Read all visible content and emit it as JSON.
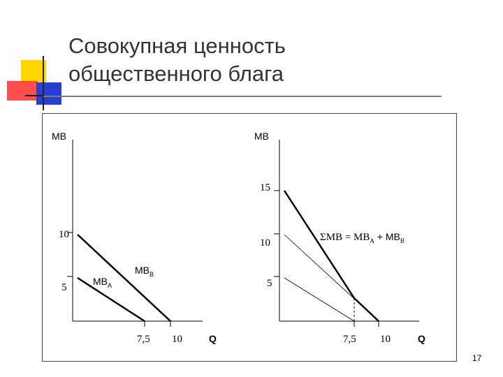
{
  "slide": {
    "title_line1": "Совокупная ценность",
    "title_line2": "общественного блага",
    "page_number": "17"
  },
  "decoration": {
    "colors": {
      "yellow": "#ffd700",
      "red": "#ff3b3b",
      "blue": "#2a3fd0",
      "rule": "#7a7a7a"
    }
  },
  "left_graph": {
    "y_axis_label": "MB",
    "x_axis_label": "Q",
    "y_ticks": [
      "10",
      "5"
    ],
    "x_ticks": [
      "7,5",
      "10"
    ],
    "curve_a": {
      "label": "MB",
      "subscript": "A",
      "intercept": 5,
      "q_zero": 7.5
    },
    "curve_b": {
      "label": "MB",
      "subscript": "B",
      "intercept": 10,
      "q_zero": 10
    }
  },
  "right_graph": {
    "y_axis_label": "MB",
    "x_axis_label": "Q",
    "y_ticks": [
      "15",
      "10",
      "5"
    ],
    "x_ticks": [
      "7,5",
      "10"
    ],
    "sum_label": {
      "prefix": "ΣMB = MB",
      "sub_a": "A",
      "plus": " + MB",
      "sub_b": "B"
    },
    "sum_kink": {
      "q": 7.5,
      "mb": 2.5
    }
  }
}
